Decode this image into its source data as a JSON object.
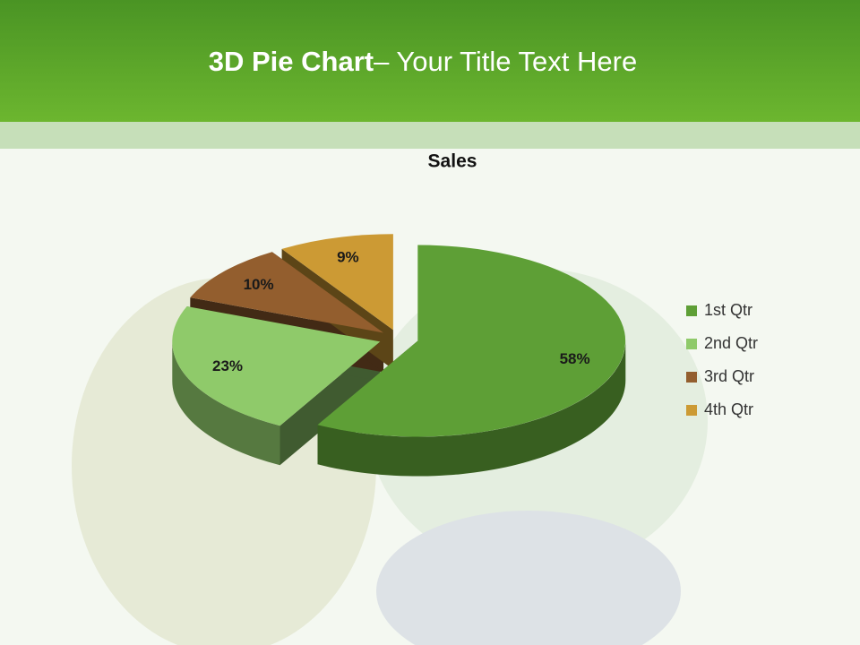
{
  "slide_title": {
    "bold": "3D Pie Chart",
    "rest": "– Your Title Text Here"
  },
  "chart_data": {
    "type": "pie",
    "three_d": true,
    "title": "Sales",
    "categories": [
      "1st Qtr",
      "2nd Qtr",
      "3rd Qtr",
      "4th Qtr"
    ],
    "values": [
      58,
      23,
      10,
      9
    ],
    "value_labels": [
      "58%",
      "23%",
      "10%",
      "9%"
    ],
    "colors": [
      "#5e9f36",
      "#8fca6a",
      "#935e2e",
      "#cc9a34"
    ],
    "legend": "right"
  }
}
